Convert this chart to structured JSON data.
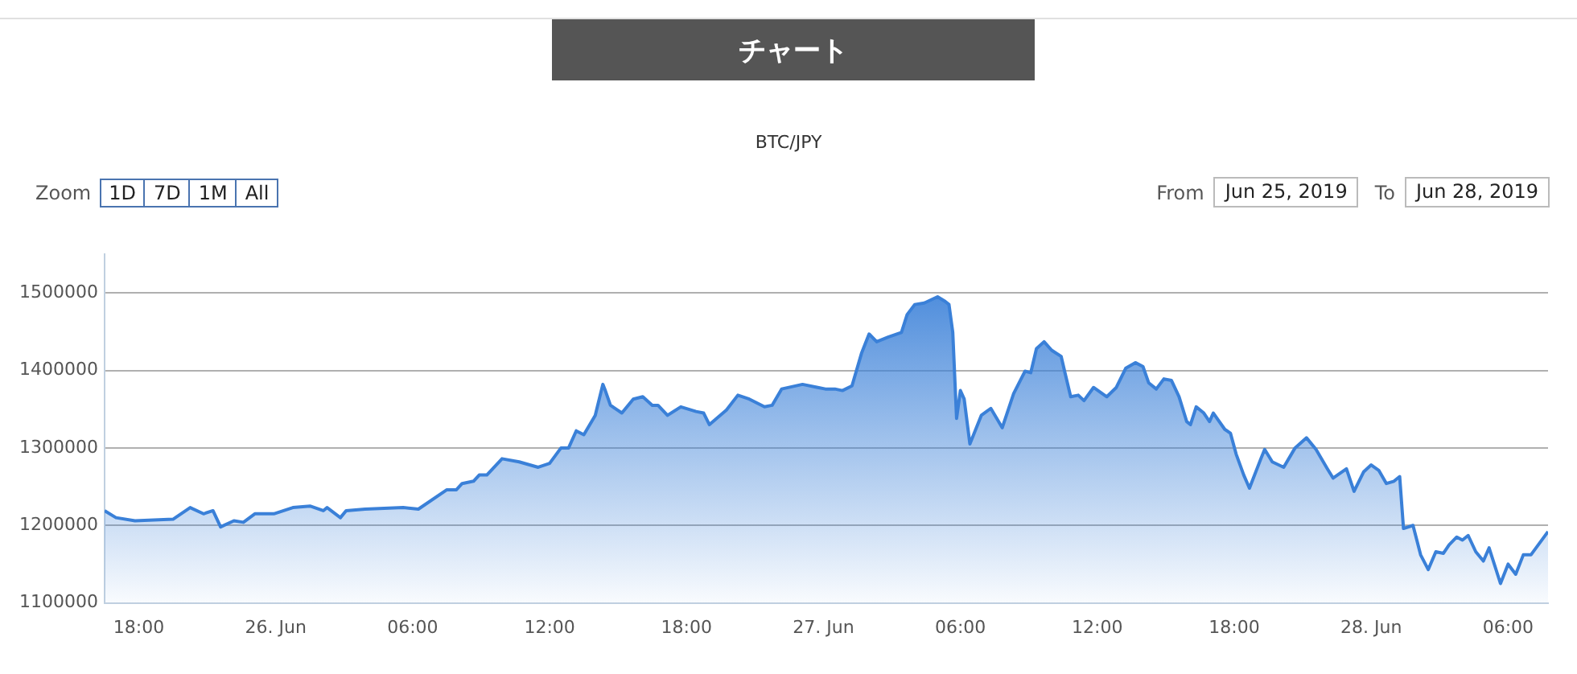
{
  "chart_data": {
    "type": "area",
    "title": "チャート",
    "subtitle": "BTC/JPY",
    "annotations": [
      "Zoom",
      "1D",
      "7D",
      "1M",
      "All",
      "From",
      "Jun 25, 2019",
      "To",
      "Jun 28, 2019"
    ],
    "x": [
      "2019-06-25T16:30",
      "2019-06-25T17:00",
      "2019-06-25T17:50",
      "2019-06-25T19:30",
      "2019-06-25T20:15",
      "2019-06-25T20:50",
      "2019-06-25T21:15",
      "2019-06-25T21:35",
      "2019-06-25T22:10",
      "2019-06-25T22:35",
      "2019-06-25T23:05",
      "2019-06-25T23:55",
      "2019-06-26T00:45",
      "2019-06-26T01:30",
      "2019-06-26T02:05",
      "2019-06-26T02:15",
      "2019-06-26T02:50",
      "2019-06-26T03:05",
      "2019-06-26T03:55",
      "2019-06-26T05:35",
      "2019-06-26T06:15",
      "2019-06-26T07:30",
      "2019-06-26T07:55",
      "2019-06-26T08:10",
      "2019-06-26T08:40",
      "2019-06-26T08:55",
      "2019-06-26T09:15",
      "2019-06-26T09:55",
      "2019-06-26T10:40",
      "2019-06-26T11:30",
      "2019-06-26T12:00",
      "2019-06-26T12:30",
      "2019-06-26T12:50",
      "2019-06-26T13:10",
      "2019-06-26T13:30",
      "2019-06-26T14:00",
      "2019-06-26T14:20",
      "2019-06-26T14:25",
      "2019-06-26T14:40",
      "2019-06-26T15:10",
      "2019-06-26T15:40",
      "2019-06-26T16:05",
      "2019-06-26T16:30",
      "2019-06-26T16:45",
      "2019-06-26T17:10",
      "2019-06-26T17:45",
      "2019-06-26T18:25",
      "2019-06-26T18:45",
      "2019-06-26T19:00",
      "2019-06-26T19:45",
      "2019-06-26T20:15",
      "2019-06-26T20:45",
      "2019-06-26T21:25",
      "2019-06-26T21:45",
      "2019-06-26T22:10",
      "2019-06-26T23:05",
      "2019-06-26T23:45",
      "2019-06-27T00:05",
      "2019-06-27T00:30",
      "2019-06-27T00:50",
      "2019-06-27T01:15",
      "2019-06-27T01:40",
      "2019-06-27T02:00",
      "2019-06-27T02:20",
      "2019-06-27T02:50",
      "2019-06-27T03:25",
      "2019-06-27T03:40",
      "2019-06-27T04:00",
      "2019-06-27T04:25",
      "2019-06-27T05:00",
      "2019-06-27T05:20",
      "2019-06-27T05:30",
      "2019-06-27T05:40",
      "2019-06-27T05:50",
      "2019-06-27T06:00",
      "2019-06-27T06:10",
      "2019-06-27T06:25",
      "2019-06-27T06:55",
      "2019-06-27T07:20",
      "2019-06-27T07:50",
      "2019-06-27T08:20",
      "2019-06-27T08:50",
      "2019-06-27T09:05",
      "2019-06-27T09:20",
      "2019-06-27T09:40",
      "2019-06-27T10:00",
      "2019-06-27T10:25",
      "2019-06-27T10:35",
      "2019-06-27T10:50",
      "2019-06-27T11:10",
      "2019-06-27T11:25",
      "2019-06-27T11:50",
      "2019-06-27T12:25",
      "2019-06-27T12:50",
      "2019-06-27T13:15",
      "2019-06-27T13:40",
      "2019-06-27T14:00",
      "2019-06-27T14:15",
      "2019-06-27T14:35",
      "2019-06-27T14:55",
      "2019-06-27T15:15",
      "2019-06-27T15:35",
      "2019-06-27T15:55",
      "2019-06-27T16:05",
      "2019-06-27T16:20",
      "2019-06-27T16:40",
      "2019-06-27T16:55",
      "2019-06-27T17:05",
      "2019-06-27T17:35",
      "2019-06-27T17:50",
      "2019-06-27T18:05",
      "2019-06-27T18:25",
      "2019-06-27T18:40",
      "2019-06-27T19:10",
      "2019-06-27T19:20",
      "2019-06-27T19:40",
      "2019-06-27T20:10",
      "2019-06-27T20:40",
      "2019-06-27T21:10",
      "2019-06-27T21:35",
      "2019-06-27T22:05",
      "2019-06-27T22:20",
      "2019-06-27T22:55",
      "2019-06-27T23:15",
      "2019-06-27T23:40",
      "2019-06-28T00:00",
      "2019-06-28T00:20",
      "2019-06-28T00:40",
      "2019-06-28T01:00",
      "2019-06-28T01:15",
      "2019-06-28T01:25",
      "2019-06-28T01:50",
      "2019-06-28T02:10",
      "2019-06-28T02:30",
      "2019-06-28T02:50",
      "2019-06-28T03:10",
      "2019-06-28T03:25",
      "2019-06-28T03:45",
      "2019-06-28T04:00",
      "2019-06-28T04:15",
      "2019-06-28T04:35",
      "2019-06-28T04:55",
      "2019-06-28T05:10",
      "2019-06-28T05:40",
      "2019-06-28T06:00",
      "2019-06-28T06:20",
      "2019-06-28T06:40",
      "2019-06-28T07:00",
      "2019-06-28T07:45"
    ],
    "series": [
      {
        "color": "#3a80d8",
        "values": [
          1219000,
          1210000,
          1206000,
          1208000,
          1223000,
          1215000,
          1219000,
          1198000,
          1206000,
          1204000,
          1215000,
          1215000,
          1223000,
          1225000,
          1219000,
          1223000,
          1210000,
          1219000,
          1221000,
          1223000,
          1221000,
          1246000,
          1246000,
          1254000,
          1257000,
          1265000,
          1265000,
          1286000,
          1282000,
          1275000,
          1280000,
          1300000,
          1300000,
          1322000,
          1317000,
          1342000,
          1382000,
          1376000,
          1355000,
          1345000,
          1363000,
          1366000,
          1355000,
          1355000,
          1342000,
          1353000,
          1347000,
          1345000,
          1330000,
          1349000,
          1368000,
          1363000,
          1353000,
          1355000,
          1376000,
          1382000,
          1378000,
          1376000,
          1376000,
          1374000,
          1380000,
          1422000,
          1447000,
          1437000,
          1443000,
          1449000,
          1472000,
          1485000,
          1487000,
          1495000,
          1489000,
          1485000,
          1449000,
          1338000,
          1374000,
          1363000,
          1305000,
          1342000,
          1351000,
          1326000,
          1370000,
          1399000,
          1397000,
          1428000,
          1437000,
          1426000,
          1418000,
          1397000,
          1366000,
          1368000,
          1361000,
          1378000,
          1366000,
          1378000,
          1403000,
          1410000,
          1405000,
          1384000,
          1376000,
          1389000,
          1387000,
          1366000,
          1334000,
          1330000,
          1353000,
          1345000,
          1334000,
          1345000,
          1324000,
          1319000,
          1292000,
          1265000,
          1248000,
          1286000,
          1298000,
          1282000,
          1275000,
          1300000,
          1313000,
          1298000,
          1273000,
          1261000,
          1273000,
          1244000,
          1269000,
          1278000,
          1271000,
          1254000,
          1257000,
          1263000,
          1196000,
          1200000,
          1162000,
          1143000,
          1166000,
          1164000,
          1175000,
          1185000,
          1181000,
          1187000,
          1166000,
          1154000,
          1171000,
          1125000,
          1150000,
          1137000,
          1162000,
          1162000,
          1192000
        ]
      }
    ],
    "xlim": [
      "2019-06-25T16:30",
      "2019-06-28T07:45"
    ],
    "xticks": [
      {
        "value": "2019-06-25T18:00",
        "label": "18:00"
      },
      {
        "value": "2019-06-26T00:00",
        "label": "26. Jun"
      },
      {
        "value": "2019-06-26T06:00",
        "label": "06:00"
      },
      {
        "value": "2019-06-26T12:00",
        "label": "12:00"
      },
      {
        "value": "2019-06-26T18:00",
        "label": "18:00"
      },
      {
        "value": "2019-06-27T00:00",
        "label": "27. Jun"
      },
      {
        "value": "2019-06-27T06:00",
        "label": "06:00"
      },
      {
        "value": "2019-06-27T12:00",
        "label": "12:00"
      },
      {
        "value": "2019-06-27T18:00",
        "label": "18:00"
      },
      {
        "value": "2019-06-28T00:00",
        "label": "28. Jun"
      },
      {
        "value": "2019-06-28T06:00",
        "label": "06:00"
      }
    ],
    "ylim": [
      1100000,
      1550000
    ],
    "yticks": [
      1100000,
      1200000,
      1300000,
      1400000,
      1500000
    ],
    "grid": "y",
    "legend": false,
    "marker": "none",
    "line_style": "solid"
  }
}
